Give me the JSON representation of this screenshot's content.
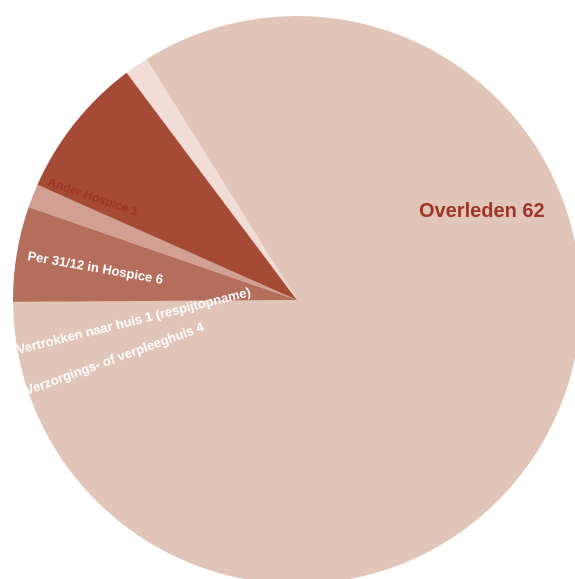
{
  "chart_data": {
    "type": "pie",
    "title": "",
    "slices": [
      {
        "label": "Overleden 62",
        "category": "Overleden",
        "value": 62,
        "color": "#E2C5B9",
        "label_color": "#9E3526"
      },
      {
        "label": "Verzorgings- of verpleeghuis 4",
        "category": "Verzorgings- of verpleeghuis",
        "value": 4,
        "color": "#B56D5C",
        "label_color": "#FFFFFF"
      },
      {
        "label": "Vertrokken naar huis 1 (respijtopname)",
        "category": "Vertrokken naar huis (respijtopname)",
        "value": 1,
        "color": "#D2A093",
        "label_color": "#FFFFFF"
      },
      {
        "label": "Per 31/12  in Hospice 6",
        "category": "Per 31/12 in Hospice",
        "value": 6,
        "color": "#A44A35",
        "label_color": "#FFFFFF"
      },
      {
        "label": "Ander Hospice 1",
        "category": "Ander Hospice",
        "value": 1,
        "color": "#F1DDD5",
        "label_color": "#9E3526"
      }
    ],
    "legend": "none"
  }
}
